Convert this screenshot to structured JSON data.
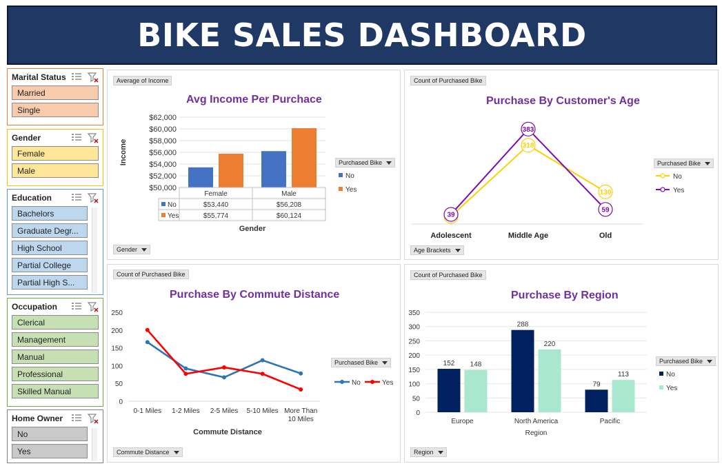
{
  "header": {
    "title": "BIKE SALES DASHBOARD"
  },
  "slicers": {
    "marital": {
      "title": "Marital Status",
      "items": [
        "Married",
        "Single"
      ]
    },
    "gender": {
      "title": "Gender",
      "items": [
        "Female",
        "Male"
      ]
    },
    "education": {
      "title": "Education",
      "items": [
        "Bachelors",
        "Graduate Degr...",
        "High School",
        "Partial College",
        "Partial High S..."
      ]
    },
    "occupation": {
      "title": "Occupation",
      "items": [
        "Clerical",
        "Management",
        "Manual",
        "Professional",
        "Skilled Manual"
      ]
    },
    "home_owner": {
      "title": "Home Owner",
      "items": [
        "No",
        "Yes"
      ]
    }
  },
  "colors": {
    "header_bg": "#1f3864",
    "title_purple": "#7030a0",
    "marital": "#f8cbad",
    "gender": "#ffe699",
    "education": "#bdd7ee",
    "occupation": "#c6e0b4",
    "home_owner": "#c9c9c9"
  },
  "panels": {
    "income": {
      "value_button": "Average of Income",
      "axis_button": "Gender",
      "legend_button": "Purchased Bike"
    },
    "age": {
      "value_button": "Count of Purchased Bike",
      "axis_button": "Age Brackets",
      "legend_button": "Purchased Bike"
    },
    "commute": {
      "value_button": "Count of Purchased Bike",
      "axis_button": "Commute Distance",
      "legend_button": "Purchased Bike"
    },
    "region": {
      "value_button": "Count of Purchased Bike",
      "axis_button": "Region",
      "legend_button": "Purchased Bike"
    }
  },
  "chart_data": [
    {
      "id": "income",
      "type": "bar",
      "title": "Avg Income Per Purchace",
      "categories": [
        "Female",
        "Male"
      ],
      "series": [
        {
          "name": "No",
          "values": [
            53440,
            56208
          ],
          "color": "#4472c4"
        },
        {
          "name": "Yes",
          "values": [
            55774,
            60124
          ],
          "color": "#ed7d31"
        }
      ],
      "table": [
        {
          "series": "No",
          "cells": [
            "$53,440",
            "$56,208"
          ]
        },
        {
          "series": "Yes",
          "cells": [
            "$55,774",
            "$60,124"
          ]
        }
      ],
      "ylim": [
        50000,
        62000
      ],
      "yticks": [
        "$50,000",
        "$52,000",
        "$54,000",
        "$56,000",
        "$58,000",
        "$60,000",
        "$62,000"
      ],
      "xlabel": "Gender",
      "ylabel": "Income",
      "legend": "right"
    },
    {
      "id": "age",
      "type": "line",
      "title": "Purchase By Customer's Age",
      "categories": [
        "Adolescent",
        "Middle Age",
        "Old"
      ],
      "series": [
        {
          "name": "No",
          "values": [
            31,
            318,
            130
          ],
          "color": "#ffd000"
        },
        {
          "name": "Yes",
          "values": [
            39,
            383,
            59
          ],
          "color": "#7d0bb3"
        }
      ],
      "ylim": [
        0,
        420
      ],
      "legend": "right",
      "data_labels": true
    },
    {
      "id": "commute",
      "type": "line",
      "title": "Purchase By Commute Distance",
      "categories": [
        "0-1 Miles",
        "1-2 Miles",
        "2-5 Miles",
        "5-10 Miles",
        "More Than 10 Miles"
      ],
      "category_lines": [
        [
          "0-1 Miles"
        ],
        [
          "1-2 Miles"
        ],
        [
          "2-5 Miles"
        ],
        [
          "5-10 Miles"
        ],
        [
          "More Than",
          "10 Miles"
        ]
      ],
      "series": [
        {
          "name": "No",
          "values": [
            166,
            92,
            67,
            115,
            78
          ],
          "color": "#2e75b6"
        },
        {
          "name": "Yes",
          "values": [
            200,
            77,
            95,
            77,
            33
          ],
          "color": "#ff0000"
        }
      ],
      "ylim": [
        0,
        250
      ],
      "yticks": [
        "0",
        "50",
        "100",
        "150",
        "200",
        "250"
      ],
      "xlabel": "Commute Distance",
      "legend": "right"
    },
    {
      "id": "region",
      "type": "bar",
      "title": "Purchase By Region",
      "categories": [
        "Europe",
        "North America",
        "Pacific"
      ],
      "series": [
        {
          "name": "No",
          "values": [
            152,
            288,
            79
          ],
          "color": "#002060"
        },
        {
          "name": "Yes",
          "values": [
            148,
            220,
            113
          ],
          "color": "#a9e8cf"
        }
      ],
      "ylim": [
        0,
        350
      ],
      "yticks": [
        "0",
        "50",
        "100",
        "150",
        "200",
        "250",
        "300",
        "350"
      ],
      "xlabel": "Region",
      "legend": "right",
      "data_labels": true
    }
  ]
}
